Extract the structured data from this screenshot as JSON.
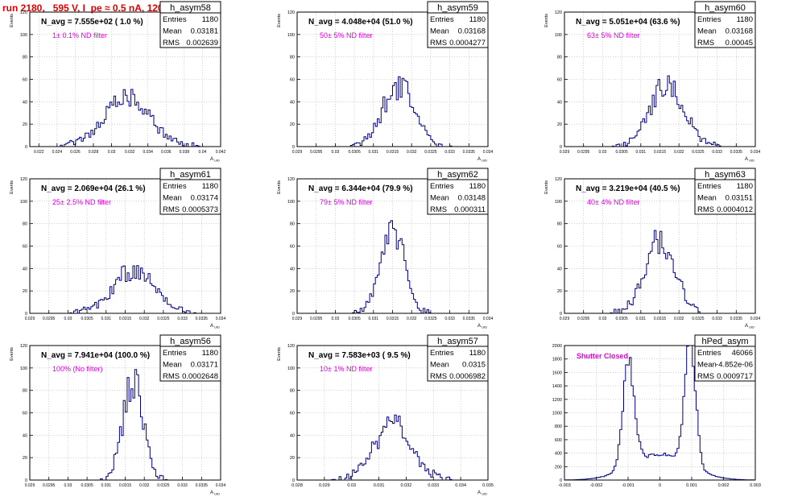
{
  "title": "run 2180,   595 V, I_pe ≈ 0.5 nA, 120 Hz",
  "colors": {
    "title": "#e00000",
    "hist_line": "#000080",
    "annotation": "#e000e0",
    "grid": "#b0b0b0"
  },
  "chart_data": [
    {
      "type": "histogram",
      "name": "h_asym58",
      "entries": "1180",
      "mean": "0.03181",
      "rms": "0.002639",
      "navg": "N_avg = 7.555e+02 ( 1.0 %)",
      "note": "1± 0.1% ND filter",
      "ylabel": "Events",
      "xlabel": "A_UID",
      "xlim": [
        0.021,
        0.042
      ],
      "ylim": [
        0,
        120
      ],
      "xticks": [
        0.022,
        0.024,
        0.026,
        0.028,
        0.03,
        0.032,
        0.034,
        0.036,
        0.038,
        0.04,
        0.042
      ],
      "xtick_labels": [
        "0.022",
        "0.024",
        "0.026",
        "0.028",
        "0.03",
        "0.032",
        "0.034",
        "0.036",
        "0.038",
        "0.04",
        "0.042"
      ],
      "yticks": [
        0,
        20,
        40,
        60,
        80,
        100,
        120
      ],
      "center": 0.0317,
      "sigma": 0.0026,
      "peak": 42
    },
    {
      "type": "histogram",
      "name": "h_asym59",
      "entries": "1180",
      "mean": "0.03168",
      "rms": "0.0004277",
      "navg": "N_avg = 4.048e+04 (51.0 %)",
      "note": "50± 5% ND filter",
      "ylabel": "Events",
      "xlabel": "A_UID",
      "xlim": [
        0.029,
        0.034
      ],
      "ylim": [
        0,
        120
      ],
      "xticks": [
        0.029,
        0.0295,
        0.03,
        0.0305,
        0.031,
        0.0315,
        0.032,
        0.0325,
        0.033,
        0.0335,
        0.034
      ],
      "xtick_labels": [
        "0.029",
        "0.0295",
        "0.03",
        "0.0305",
        "0.031",
        "0.0315",
        "0.032",
        "0.0325",
        "0.033",
        "0.0335",
        "0.034"
      ],
      "yticks": [
        0,
        20,
        40,
        60,
        80,
        100,
        120
      ],
      "center": 0.03168,
      "sigma": 0.00043,
      "peak": 54
    },
    {
      "type": "histogram",
      "name": "h_asym60",
      "entries": "1180",
      "mean": "0.03168",
      "rms": "0.00045",
      "navg": "N_avg = 5.051e+04 (63.6 %)",
      "note": "63± 5% ND filter",
      "ylabel": "Events",
      "xlabel": "A_UID",
      "xlim": [
        0.029,
        0.034
      ],
      "ylim": [
        0,
        120
      ],
      "xticks": [
        0.029,
        0.0295,
        0.03,
        0.0305,
        0.031,
        0.0315,
        0.032,
        0.0325,
        0.033,
        0.0335,
        0.034
      ],
      "xtick_labels": [
        "0.029",
        "0.0295",
        "0.03",
        "0.0305",
        "0.031",
        "0.0315",
        "0.032",
        "0.0325",
        "0.033",
        "0.0335",
        "0.034"
      ],
      "yticks": [
        0,
        20,
        40,
        60,
        80,
        100,
        120
      ],
      "center": 0.03168,
      "sigma": 0.00045,
      "peak": 54
    },
    {
      "type": "histogram",
      "name": "h_asym61",
      "entries": "1180",
      "mean": "0.03174",
      "rms": "0.0005373",
      "navg": "N_avg = 2.069e+04 (26.1 %)",
      "note": "25± 2.5% ND filter",
      "ylabel": "Events",
      "xlabel": "A_UID",
      "xlim": [
        0.029,
        0.034
      ],
      "ylim": [
        0,
        120
      ],
      "xticks": [
        0.029,
        0.0295,
        0.03,
        0.0305,
        0.031,
        0.0315,
        0.032,
        0.0325,
        0.033,
        0.0335,
        0.034
      ],
      "xtick_labels": [
        "0.029",
        "0.0295",
        "0.03",
        "0.0305",
        "0.031",
        "0.0315",
        "0.032",
        "0.0325",
        "0.033",
        "0.0335",
        "0.034"
      ],
      "yticks": [
        0,
        20,
        40,
        60,
        80,
        100,
        120
      ],
      "center": 0.03172,
      "sigma": 0.00054,
      "peak": 40
    },
    {
      "type": "histogram",
      "name": "h_asym62",
      "entries": "1180",
      "mean": "0.03148",
      "rms": "0.000311",
      "navg": "N_avg = 6.344e+04 (79.9 %)",
      "note": "79± 5% ND filter",
      "ylabel": "Events",
      "xlabel": "A_UID",
      "xlim": [
        0.029,
        0.034
      ],
      "ylim": [
        0,
        120
      ],
      "xticks": [
        0.029,
        0.0295,
        0.03,
        0.0305,
        0.031,
        0.0315,
        0.032,
        0.0325,
        0.033,
        0.0335,
        0.034
      ],
      "xtick_labels": [
        "0.029",
        "0.0295",
        "0.03",
        "0.0305",
        "0.031",
        "0.0315",
        "0.032",
        "0.0325",
        "0.033",
        "0.0335",
        "0.034"
      ],
      "yticks": [
        0,
        20,
        40,
        60,
        80,
        100,
        120
      ],
      "center": 0.03148,
      "sigma": 0.00031,
      "peak": 78
    },
    {
      "type": "histogram",
      "name": "h_asym63",
      "entries": "1180",
      "mean": "0.03151",
      "rms": "0.0004012",
      "navg": "N_avg = 3.219e+04 (40.5 %)",
      "note": "40± 4% ND filter",
      "ylabel": "Events",
      "xlabel": "A_UID",
      "xlim": [
        0.029,
        0.034
      ],
      "ylim": [
        0,
        120
      ],
      "xticks": [
        0.029,
        0.0295,
        0.03,
        0.0305,
        0.031,
        0.0315,
        0.032,
        0.0325,
        0.033,
        0.0335,
        0.034
      ],
      "xtick_labels": [
        "0.029",
        "0.0295",
        "0.03",
        "0.0305",
        "0.031",
        "0.0315",
        "0.032",
        "0.0325",
        "0.033",
        "0.0335",
        "0.034"
      ],
      "yticks": [
        0,
        20,
        40,
        60,
        80,
        100,
        120
      ],
      "center": 0.03151,
      "sigma": 0.0004,
      "peak": 64
    },
    {
      "type": "histogram",
      "name": "h_asym56",
      "entries": "1180",
      "mean": "0.03171",
      "rms": "0.0002648",
      "navg": "N_avg = 7.941e+04 (100.0 %)",
      "note": "100% (No filter)",
      "ylabel": "Events",
      "xlabel": "A_UID",
      "xlim": [
        0.029,
        0.034
      ],
      "ylim": [
        0,
        120
      ],
      "xticks": [
        0.029,
        0.0295,
        0.03,
        0.0305,
        0.031,
        0.0315,
        0.032,
        0.0325,
        0.033,
        0.0335,
        0.034
      ],
      "xtick_labels": [
        "0.029",
        "0.0295",
        "0.03",
        "0.0305",
        "0.031",
        "0.0315",
        "0.032",
        "0.0325",
        "0.033",
        "0.0335",
        "0.034"
      ],
      "yticks": [
        0,
        20,
        40,
        60,
        80,
        100,
        120
      ],
      "center": 0.03171,
      "sigma": 0.000265,
      "peak": 92
    },
    {
      "type": "histogram",
      "name": "h_asym57",
      "entries": "1180",
      "mean": "0.0315",
      "rms": "0.0006982",
      "navg": "N_avg = 7.583e+03 ( 9.5 %)",
      "note": "10± 1% ND filter",
      "ylabel": "Events",
      "xlabel": "A_UID",
      "xlim": [
        0.028,
        0.035
      ],
      "ylim": [
        0,
        120
      ],
      "xticks": [
        0.028,
        0.029,
        0.03,
        0.031,
        0.032,
        0.033,
        0.034,
        0.035
      ],
      "xtick_labels": [
        "0.028",
        "0.029",
        "0.03",
        "0.031",
        "0.032",
        "0.033",
        "0.034",
        "0.035"
      ],
      "yticks": [
        0,
        20,
        40,
        60,
        80,
        100,
        120
      ],
      "center": 0.0315,
      "sigma": 0.0007,
      "peak": 50
    },
    {
      "type": "histogram",
      "name": "hPed_asym",
      "entries": "46066",
      "mean": "-4.852e-06",
      "rms": "0.0009717",
      "navg": "",
      "note": "Shutter Closed",
      "ylabel": "",
      "xlabel": "",
      "xlim": [
        -0.003,
        0.003
      ],
      "ylim": [
        0,
        2000
      ],
      "xticks": [
        -0.003,
        -0.002,
        -0.001,
        0,
        0.001,
        0.002,
        0.003
      ],
      "xtick_labels": [
        "-0.003",
        "-0.002",
        "-0.001",
        "0",
        "0.001",
        "0.002",
        "0.003"
      ],
      "yticks": [
        0,
        200,
        400,
        600,
        800,
        1000,
        1200,
        1400,
        1600,
        1800,
        2000
      ],
      "peaks": [
        [
          -0.00098,
          0.00018,
          1550
        ],
        [
          0.00095,
          0.00017,
          1860
        ]
      ],
      "floor": 380
    }
  ]
}
